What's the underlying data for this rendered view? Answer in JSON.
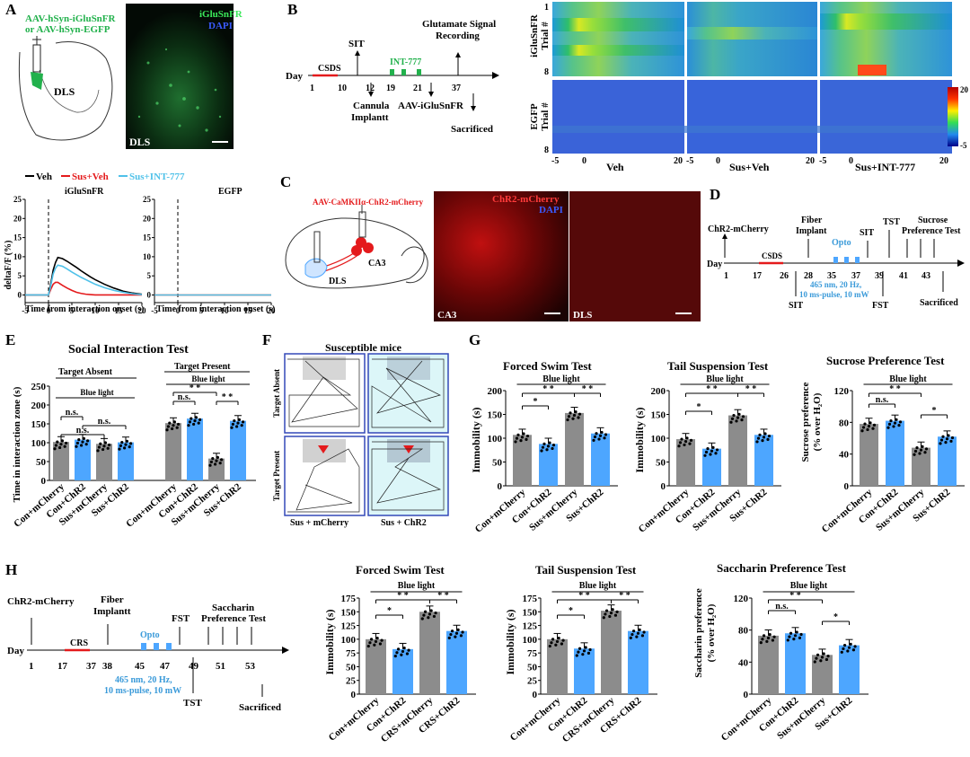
{
  "panels": {
    "A": {
      "letter": "A",
      "virus_line1": "AAV-hSyn-iGluSnFR",
      "virus_line2": "or AAV-hSyn-EGFP",
      "region": "DLS",
      "img_label": "iGluSnFR",
      "img_dapi": "DAPI",
      "img_region": "DLS"
    },
    "A_traces": {
      "legend": [
        {
          "label": "Veh",
          "color": "#000000"
        },
        {
          "label": "Sus+Veh",
          "color": "#e41a1c"
        },
        {
          "label": "Sus+INT-777",
          "color": "#4fc1e9"
        }
      ],
      "left_title": "iGluSnFR",
      "right_title": "EGFP",
      "ylabel": "deltaF/F (%)",
      "xlabel": "Time from interaction onset (s)",
      "yticks": [
        "0",
        "5",
        "10",
        "15",
        "20",
        "25"
      ],
      "xticks": [
        "-5",
        "0",
        "5",
        "10",
        "15",
        "20"
      ]
    },
    "B": {
      "letter": "B",
      "day": "Day",
      "csds": "CSDS",
      "sit": "SIT",
      "int": "INT-777",
      "glut1": "Glutamate Signal",
      "glut2": "Recording",
      "cannula1": "Cannula",
      "cannula2": "Implantt",
      "aav": "AAV-iGluSnFR",
      "sacrificed": "Sacrificed",
      "ticks": [
        "1",
        "10",
        "12",
        "19",
        "21",
        "37"
      ]
    },
    "B_heat": {
      "ig_label1": "iGluSnFR",
      "ig_label2": "Trial #",
      "egfp_label1": "EGFP",
      "egfp_label2": "Trial #",
      "row_top": "1",
      "row_bot": "8",
      "groups": [
        "Veh",
        "Sus+Veh",
        "Sus+INT-777"
      ],
      "xticks": [
        "-5",
        "0",
        "20"
      ],
      "cbar_max": "20",
      "cbar_min": "-5"
    },
    "C": {
      "letter": "C",
      "virus": "AAV-CaMKIIα-ChR2-mCherry",
      "ca3": "CA3",
      "dls": "DLS",
      "img_title": "ChR2-mCherry",
      "img_dapi": "DAPI",
      "img_ca3": "CA3",
      "img_dls": "DLS"
    },
    "D": {
      "letter": "D",
      "chr2": "ChR2-mCherry",
      "fiber1": "Fiber",
      "fiber2": "Implant",
      "opto": "Opto",
      "sit_top": "SIT",
      "tst": "TST",
      "sucrose1": "Sucrose",
      "sucrose2": "Preference Test",
      "day": "Day",
      "csds": "CSDS",
      "ticks": [
        "1",
        "17",
        "26",
        "28",
        "35",
        "37",
        "39",
        "41",
        "43"
      ],
      "laser1": "465 nm, 20 Hz,",
      "laser2": "10 ms-pulse, 10 mW",
      "sit_bot": "SIT",
      "fst": "FST",
      "sacrificed": "Sacrificed"
    },
    "E": {
      "letter": "E",
      "title": "Social Interaction Test",
      "absent": "Target Absent",
      "present": "Target Present",
      "blue_light": "Blue light",
      "ylabel": "Time in interaction zone (s)",
      "yticks": [
        "0",
        "50",
        "100",
        "150",
        "200",
        "250"
      ],
      "groups": [
        "Con+mCherry",
        "Con+ChR2",
        "Sus+mCherry",
        "Sus+ChR2"
      ],
      "sig_ns": "n.s.",
      "sig_ss": "* *"
    },
    "F": {
      "letter": "F",
      "title": "Susceptible mice",
      "row1": "Target Absent",
      "row2": "Target Present",
      "col1": "Sus + mCherry",
      "col2": "Sus + ChR2"
    },
    "G": {
      "letter": "G",
      "blue_light": "Blue light",
      "ns": "n.s.",
      "s1": "*",
      "s2": "* *",
      "fst_title": "Forced Swim Test",
      "tst_title": "Tail Suspension Test",
      "spt_title": "Sucrose Preference Test",
      "imm_label": "Immobility (s)",
      "pref_label1": "Sucrose preference",
      "pref_label2": "(% over H₂O)",
      "imm_ticks": [
        "0",
        "50",
        "100",
        "150",
        "200"
      ],
      "pref_ticks": [
        "0",
        "40",
        "80",
        "120"
      ],
      "groups": [
        "Con+mCherry",
        "Con+ChR2",
        "Sus+mCherry",
        "Sus+ChR2"
      ]
    },
    "H": {
      "letter": "H",
      "chr2": "ChR2-mCherry",
      "fiber1": "Fiber",
      "fiber2": "Implantt",
      "day": "Day",
      "crs": "CRS",
      "opto": "Opto",
      "fst": "FST",
      "sac1": "Saccharin",
      "sac2": "Preference Test",
      "ticks": [
        "1",
        "17",
        "37",
        "38",
        "45",
        "47",
        "49",
        "51",
        "53"
      ],
      "laser1": "465 nm, 20 Hz,",
      "laser2": "10 ms-pulse, 10 mW",
      "tst": "TST",
      "sacrificed": "Sacrificed",
      "fst_title": "Forced Swim Test",
      "tst_title": "Tail Suspension Test",
      "sacc_title": "Saccharin Preference Test",
      "blue_light": "Blue light",
      "imm_label": "Immobility (s)",
      "pref_label1": "Saccharin preference",
      "pref_label2": "(% over H₂O)",
      "imm_ticks": [
        "0",
        "25",
        "50",
        "75",
        "100",
        "125",
        "150",
        "175"
      ],
      "pref_ticks": [
        "0",
        "40",
        "80",
        "120"
      ],
      "groups_fst": [
        "Con+mCherry",
        "Con+ChR2",
        "CRS+mCherry",
        "CRS+ChR2"
      ],
      "groups_sacc": [
        "Con+mCherry",
        "Con+ChR2",
        "Sus+mCherry",
        "Sus+ChR2"
      ],
      "ns": "n.s.",
      "s1": "*",
      "s2": "* *"
    }
  },
  "colors": {
    "gray": "#8c8c8c",
    "blue": "#4da6ff",
    "laser": "#3a9ad9",
    "red": "#e41a1c",
    "green": "#22b14c"
  },
  "chart_data": [
    {
      "type": "line",
      "title": "iGluSnFR",
      "xlabel": "Time from interaction onset (s)",
      "ylabel": "deltaF/F (%)",
      "xlim": [
        -5,
        20
      ],
      "ylim": [
        -2,
        25
      ],
      "x": [
        -5,
        -2,
        0,
        0.5,
        1,
        1.5,
        2,
        3,
        4,
        5,
        6,
        7,
        8,
        9,
        10,
        12,
        14,
        16,
        18,
        20
      ],
      "series": [
        {
          "name": "Veh",
          "values": [
            0,
            0,
            0,
            3,
            6.5,
            8.5,
            9.8,
            9.5,
            8.8,
            8,
            7.2,
            6.3,
            5.5,
            4.7,
            4,
            2.8,
            1.8,
            1,
            0.5,
            0.2
          ]
        },
        {
          "name": "Sus+Veh",
          "values": [
            0,
            0,
            0,
            1.5,
            2.8,
            3.3,
            3.3,
            2.5,
            1.8,
            1.2,
            0.7,
            0.4,
            0.2,
            0.1,
            0,
            0,
            0,
            0,
            0,
            0
          ]
        },
        {
          "name": "Sus+INT-777",
          "values": [
            0,
            0,
            0,
            2.5,
            5.5,
            7,
            7.8,
            7.5,
            6.8,
            6,
            5.3,
            4.6,
            4,
            3.4,
            2.8,
            1.9,
            1.2,
            0.7,
            0.3,
            0.1
          ]
        }
      ]
    },
    {
      "type": "line",
      "title": "EGFP",
      "xlabel": "Time from interaction onset (s)",
      "ylabel": "deltaF/F (%)",
      "xlim": [
        -5,
        20
      ],
      "ylim": [
        -2,
        25
      ],
      "x": [
        -5,
        0,
        20
      ],
      "series": [
        {
          "name": "Veh",
          "values": [
            0,
            0,
            0
          ]
        },
        {
          "name": "Sus+Veh",
          "values": [
            0,
            0,
            0
          ]
        },
        {
          "name": "Sus+INT-777",
          "values": [
            0,
            0,
            0
          ]
        }
      ]
    },
    {
      "type": "bar",
      "title": "Social Interaction Test — Target Absent",
      "ylabel": "Time in interaction zone (s)",
      "ylim": [
        0,
        250
      ],
      "categories": [
        "Con+mCherry",
        "Con+ChR2",
        "Sus+mCherry",
        "Sus+ChR2"
      ],
      "values": [
        102,
        108,
        97,
        101
      ]
    },
    {
      "type": "bar",
      "title": "Social Interaction Test — Target Present",
      "ylabel": "Time in interaction zone (s)",
      "ylim": [
        0,
        250
      ],
      "categories": [
        "Con+mCherry",
        "Con+ChR2",
        "Sus+mCherry",
        "Sus+ChR2"
      ],
      "values": [
        152,
        164,
        58,
        158
      ]
    },
    {
      "type": "bar",
      "title": "Forced Swim Test (G)",
      "ylabel": "Immobility (s)",
      "ylim": [
        0,
        200
      ],
      "categories": [
        "Con+mCherry",
        "Con+ChR2",
        "Sus+mCherry",
        "Sus+ChR2"
      ],
      "values": [
        107,
        88,
        153,
        110
      ]
    },
    {
      "type": "bar",
      "title": "Tail Suspension Test (G)",
      "ylabel": "Immobility (s)",
      "ylim": [
        0,
        200
      ],
      "categories": [
        "Con+mCherry",
        "Con+ChR2",
        "Sus+mCherry",
        "Sus+ChR2"
      ],
      "values": [
        98,
        78,
        148,
        107
      ]
    },
    {
      "type": "bar",
      "title": "Sucrose Preference Test",
      "ylabel": "Sucrose preference (% over H2O)",
      "ylim": [
        0,
        120
      ],
      "categories": [
        "Con+mCherry",
        "Con+ChR2",
        "Sus+mCherry",
        "Sus+ChR2"
      ],
      "values": [
        78,
        82,
        48,
        62
      ]
    },
    {
      "type": "bar",
      "title": "Forced Swim Test (H)",
      "ylabel": "Immobility (s)",
      "ylim": [
        0,
        175
      ],
      "categories": [
        "Con+mCherry",
        "Con+ChR2",
        "CRS+mCherry",
        "CRS+ChR2"
      ],
      "values": [
        100,
        82,
        150,
        115
      ]
    },
    {
      "type": "bar",
      "title": "Tail Suspension Test (H)",
      "ylabel": "Immobility (s)",
      "ylim": [
        0,
        175
      ],
      "categories": [
        "Con+mCherry",
        "Con+ChR2",
        "CRS+mCherry",
        "CRS+ChR2"
      ],
      "values": [
        100,
        83,
        152,
        115
      ]
    },
    {
      "type": "bar",
      "title": "Saccharin Preference Test",
      "ylabel": "Saccharin preference (% over H2O)",
      "ylim": [
        0,
        120
      ],
      "categories": [
        "Con+mCherry",
        "Con+ChR2",
        "Sus+mCherry",
        "Sus+ChR2"
      ],
      "values": [
        73,
        76,
        49,
        61
      ]
    }
  ]
}
